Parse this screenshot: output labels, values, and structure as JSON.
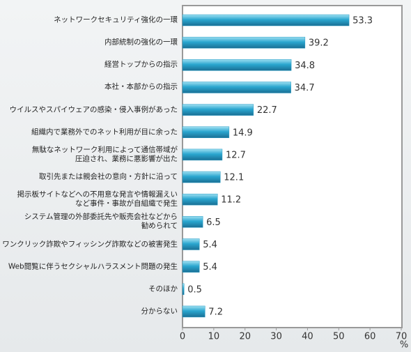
{
  "chart_data": {
    "type": "bar",
    "orientation": "horizontal",
    "categories": [
      "ネットワークセキュリティ強化の一環",
      "内部統制の強化の一環",
      "経営トップからの指示",
      "本社・本部からの指示",
      "ウイルスやスパイウェアの感染・侵入事例があった",
      "組織内で業務外でのネット利用が目に余った",
      "無駄なネットワーク利用によって通信帯域が\n圧迫され、業務に悪影響が出た",
      "取引先または親会社の意向・方針に沿って",
      "掲示板サイトなどへの不用意な発言や情報漏えい\nなど事件・事故が自組織で発生",
      "システム管理の外部委託先や販売会社などから\n勧められて",
      "ワンクリック詐欺やフィッシング詐欺などの被害発生",
      "Web閲覧に伴うセクシャルハラスメント問題の発生",
      "そのほか",
      "分からない"
    ],
    "values": [
      53.3,
      39.2,
      34.8,
      34.7,
      22.7,
      14.9,
      12.7,
      12.1,
      11.2,
      6.5,
      5.4,
      5.4,
      0.5,
      7.2
    ],
    "color": "#2a9cc4",
    "xlim": [
      0,
      70
    ],
    "xticks": [
      0,
      10,
      20,
      30,
      40,
      50,
      60,
      70
    ],
    "xlabel": "%",
    "grid": false
  }
}
